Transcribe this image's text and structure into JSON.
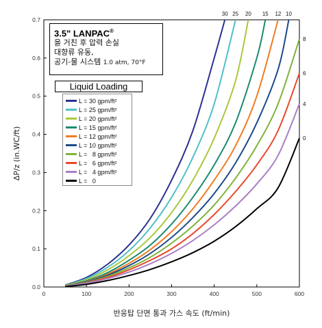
{
  "chart_data": {
    "type": "line",
    "xlabel": "반응탑 단면 통과 가스 속도 (ft/min)",
    "ylabel": "ΔP/z (in.WC/ft)",
    "xlim": [
      0,
      600
    ],
    "ylim": [
      0,
      0.7
    ],
    "x_ticks": [
      "0",
      "100",
      "200",
      "300",
      "400",
      "500",
      "600"
    ],
    "y_ticks": [
      "0.0",
      "0.1",
      "0.2",
      "0.3",
      "0.4",
      "0.5",
      "0.6",
      "0.7"
    ],
    "grid": false,
    "infobox": {
      "title": "3.5\" LANPAC",
      "title_mark": "®",
      "line1": "을 거친 후 압력 손실",
      "line2": "대향류 유동,",
      "line3": "공기-물 시스템",
      "line3_small": "1.0 atm, 70°F"
    },
    "legend_title": "Liquid Loading",
    "series": [
      {
        "name": "L = 30 gpm/ft²",
        "top_label": "30",
        "color": "#2b2f8f",
        "x": [
          50,
          100,
          150,
          200,
          250,
          300,
          350,
          400,
          425
        ],
        "y": [
          0.005,
          0.025,
          0.06,
          0.11,
          0.18,
          0.28,
          0.41,
          0.6,
          0.7
        ]
      },
      {
        "name": "L = 25 gpm/ft²",
        "top_label": "25",
        "color": "#4fc0c7",
        "x": [
          50,
          100,
          150,
          200,
          250,
          300,
          350,
          400,
          450
        ],
        "y": [
          0.004,
          0.022,
          0.052,
          0.095,
          0.155,
          0.235,
          0.34,
          0.48,
          0.7
        ]
      },
      {
        "name": "L = 20 gpm/ft²",
        "top_label": "20",
        "color": "#a8c83c",
        "x": [
          50,
          100,
          150,
          200,
          250,
          300,
          350,
          400,
          450,
          480
        ],
        "y": [
          0.004,
          0.019,
          0.045,
          0.082,
          0.13,
          0.195,
          0.28,
          0.39,
          0.54,
          0.7
        ]
      },
      {
        "name": "L = 15 gpm/ft²",
        "top_label": "15",
        "color": "#1a8a6e",
        "x": [
          50,
          100,
          150,
          200,
          250,
          300,
          350,
          400,
          450,
          500,
          520
        ],
        "y": [
          0.003,
          0.016,
          0.038,
          0.07,
          0.11,
          0.165,
          0.235,
          0.32,
          0.43,
          0.6,
          0.7
        ]
      },
      {
        "name": "L = 12 gpm/ft²",
        "top_label": "12",
        "color": "#f07b22",
        "x": [
          50,
          100,
          150,
          200,
          250,
          300,
          350,
          400,
          450,
          500,
          550
        ],
        "y": [
          0.003,
          0.014,
          0.034,
          0.062,
          0.098,
          0.145,
          0.205,
          0.28,
          0.37,
          0.5,
          0.7
        ]
      },
      {
        "name": "L = 10 gpm/ft²",
        "top_label": "10",
        "color": "#1b4a8a",
        "x": [
          50,
          100,
          150,
          200,
          250,
          300,
          350,
          400,
          450,
          500,
          550,
          575
        ],
        "y": [
          0.003,
          0.013,
          0.031,
          0.056,
          0.088,
          0.13,
          0.182,
          0.245,
          0.325,
          0.43,
          0.57,
          0.7
        ]
      },
      {
        "name": "L =   8 gpm/ft²",
        "top_label": "8",
        "color": "#7fb33a",
        "x": [
          50,
          100,
          150,
          200,
          250,
          300,
          350,
          400,
          450,
          500,
          550,
          600
        ],
        "y": [
          0.003,
          0.012,
          0.028,
          0.05,
          0.078,
          0.115,
          0.16,
          0.215,
          0.285,
          0.37,
          0.48,
          0.65
        ]
      },
      {
        "name": "L =   6 gpm/ft²",
        "top_label": "6",
        "color": "#e8472a",
        "x": [
          50,
          100,
          150,
          200,
          250,
          300,
          350,
          400,
          450,
          500,
          550,
          600
        ],
        "y": [
          0.002,
          0.011,
          0.025,
          0.045,
          0.07,
          0.1,
          0.14,
          0.19,
          0.25,
          0.32,
          0.41,
          0.56
        ]
      },
      {
        "name": "L =   4 gpm/ft²",
        "top_label": "4",
        "color": "#a97fc4",
        "x": [
          50,
          100,
          150,
          200,
          250,
          300,
          350,
          400,
          450,
          500,
          550,
          600
        ],
        "y": [
          0.002,
          0.01,
          0.022,
          0.039,
          0.061,
          0.088,
          0.122,
          0.163,
          0.212,
          0.27,
          0.345,
          0.48
        ]
      },
      {
        "name": "L =   0",
        "top_label": "0",
        "color": "#000000",
        "x": [
          50,
          100,
          150,
          200,
          250,
          300,
          350,
          400,
          450,
          500,
          550,
          600
        ],
        "y": [
          0.001,
          0.007,
          0.017,
          0.03,
          0.046,
          0.066,
          0.09,
          0.12,
          0.158,
          0.205,
          0.26,
          0.39
        ]
      }
    ]
  }
}
